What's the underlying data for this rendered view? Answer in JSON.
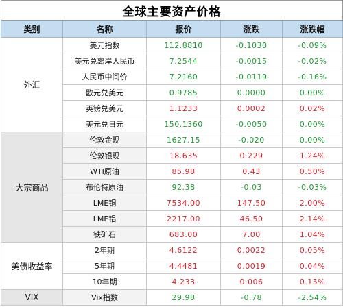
{
  "title": "全球主要资产价格",
  "headers": [
    "类别",
    "名称",
    "报价",
    "涨跌",
    "涨跌幅"
  ],
  "colors": {
    "up": "#d8262e",
    "down": "#1f9a34",
    "header_bg": "#c5ddf0"
  },
  "groups": [
    {
      "category": "外汇",
      "rows": [
        {
          "name": "美元指数",
          "price": "112.8810",
          "change": "-0.1030",
          "pct": "-0.09%",
          "dir": "neg"
        },
        {
          "name": "美元兑离岸人民币",
          "price": "7.2544",
          "change": "-0.0015",
          "pct": "-0.02%",
          "dir": "neg"
        },
        {
          "name": "人民币中间价",
          "price": "7.2160",
          "change": "-0.0119",
          "pct": "-0.16%",
          "dir": "neg"
        },
        {
          "name": "欧元兑美元",
          "price": "0.9785",
          "change": "0.0000",
          "pct": "0.00%",
          "dir": "zero"
        },
        {
          "name": "英镑兑美元",
          "price": "1.1233",
          "change": "0.0002",
          "pct": "0.02%",
          "dir": "pos"
        },
        {
          "name": "美元兑日元",
          "price": "150.1360",
          "change": "-0.0050",
          "pct": "0.00%",
          "dir": "neg"
        }
      ]
    },
    {
      "category": "大宗商品",
      "rows": [
        {
          "name": "伦敦金现",
          "price": "1627.15",
          "change": "-0.020",
          "pct": "0.00%",
          "dir": "neg"
        },
        {
          "name": "伦敦银现",
          "price": "18.635",
          "change": "0.229",
          "pct": "1.24%",
          "dir": "pos"
        },
        {
          "name": "WTI原油",
          "price": "85.98",
          "change": "0.43",
          "pct": "0.50%",
          "dir": "pos"
        },
        {
          "name": "布伦特原油",
          "price": "92.38",
          "change": "-0.03",
          "pct": "-0.03%",
          "dir": "neg"
        },
        {
          "name": "LME铜",
          "price": "7534.00",
          "change": "147.50",
          "pct": "2.00%",
          "dir": "pos"
        },
        {
          "name": "LME铝",
          "price": "2217.00",
          "change": "46.50",
          "pct": "2.14%",
          "dir": "pos"
        },
        {
          "name": "铁矿石",
          "price": "683.00",
          "change": "7.00",
          "pct": "1.04%",
          "dir": "pos"
        }
      ]
    },
    {
      "category": "美债收益率",
      "rows": [
        {
          "name": "2年期",
          "price": "4.6122",
          "change": "0.0022",
          "pct": "0.05%",
          "dir": "pos"
        },
        {
          "name": "5年期",
          "price": "4.4481",
          "change": "0.0019",
          "pct": "0.04%",
          "dir": "pos"
        },
        {
          "name": "10年期",
          "price": "4.233",
          "change": "0.006",
          "pct": "0.15%",
          "dir": "pos"
        }
      ]
    },
    {
      "category": "VIX",
      "rows": [
        {
          "name": "Vix指数",
          "price": "29.98",
          "change": "-0.78",
          "pct": "-2.54%",
          "dir": "neg"
        }
      ]
    }
  ]
}
